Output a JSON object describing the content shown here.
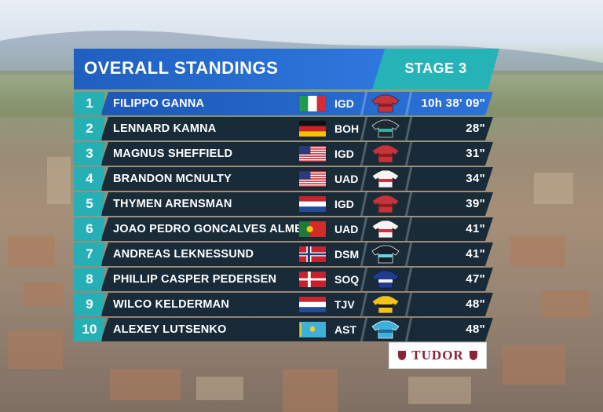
{
  "header": {
    "title": "OVERALL STANDINGS",
    "stage": "STAGE 3"
  },
  "colors": {
    "header_blue": "#2f78de",
    "stage_teal": "#25b3b8",
    "rank_teal": "#26b0b6",
    "row_dark": "#0f2434",
    "sponsor_red": "#8d2234"
  },
  "standings": [
    {
      "rank": "1",
      "name": "FILIPPO GANNA",
      "flag": "italy",
      "team": "IGD",
      "jersey": "ineos-icon",
      "time": "10h 38' 09\""
    },
    {
      "rank": "2",
      "name": "LENNARD KAMNA",
      "flag": "germany",
      "team": "BOH",
      "jersey": "bora-icon",
      "time": "28\""
    },
    {
      "rank": "3",
      "name": "MAGNUS SHEFFIELD",
      "flag": "usa",
      "team": "IGD",
      "jersey": "ineos-icon",
      "time": "31\""
    },
    {
      "rank": "4",
      "name": "BRANDON MCNULTY",
      "flag": "usa",
      "team": "UAD",
      "jersey": "uae-icon",
      "time": "34\""
    },
    {
      "rank": "5",
      "name": "THYMEN ARENSMAN",
      "flag": "netherlands",
      "team": "IGD",
      "jersey": "ineos-icon",
      "time": "39\""
    },
    {
      "rank": "6",
      "name": "JOAO PEDRO GONCALVES ALMEIDA",
      "flag": "portugal",
      "team": "UAD",
      "jersey": "uae-icon",
      "time": "41\""
    },
    {
      "rank": "7",
      "name": "ANDREAS LEKNESSUND",
      "flag": "norway",
      "team": "DSM",
      "jersey": "dsm-icon",
      "time": "41\""
    },
    {
      "rank": "8",
      "name": "PHILLIP CASPER PEDERSEN",
      "flag": "denmark",
      "team": "SOQ",
      "jersey": "soudal-icon",
      "time": "47\""
    },
    {
      "rank": "9",
      "name": "WILCO KELDERMAN",
      "flag": "netherlands",
      "team": "TJV",
      "jersey": "jumbo-icon",
      "time": "48\""
    },
    {
      "rank": "10",
      "name": "ALEXEY LUTSENKO",
      "flag": "kazakhstan",
      "team": "AST",
      "jersey": "astana-icon",
      "time": "48\""
    }
  ],
  "sponsor": {
    "name": "TUDOR"
  }
}
